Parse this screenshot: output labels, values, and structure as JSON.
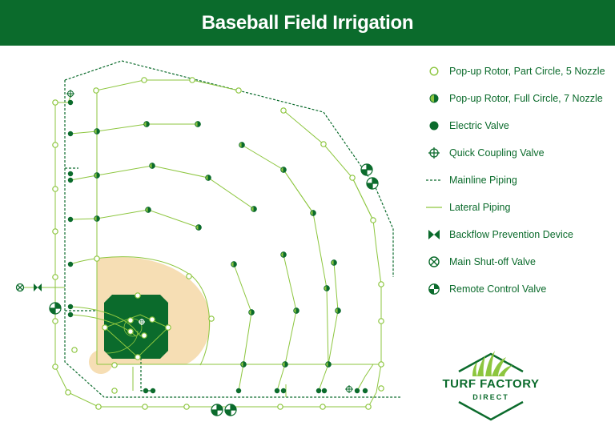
{
  "title": "Baseball Field Irrigation",
  "colors": {
    "brand_green": "#0b6b2c",
    "light_green": "#8dc63f",
    "dirt": "#f6deb4",
    "white": "#ffffff"
  },
  "legend": [
    {
      "icon": "rotor-part-circle-icon",
      "label": "Pop-up Rotor, Part Circle, 5 Nozzle"
    },
    {
      "icon": "rotor-full-circle-icon",
      "label": "Pop-up Rotor, Full Circle, 7 Nozzle"
    },
    {
      "icon": "electric-valve-icon",
      "label": "Electric Valve"
    },
    {
      "icon": "quick-coupling-valve-icon",
      "label": "Quick Coupling Valve"
    },
    {
      "icon": "mainline-piping-icon",
      "label": "Mainline Piping"
    },
    {
      "icon": "lateral-piping-icon",
      "label": "Lateral Piping"
    },
    {
      "icon": "backflow-prevention-icon",
      "label": "Backflow Prevention Device"
    },
    {
      "icon": "main-shutoff-valve-icon",
      "label": "Main Shut-off Valve"
    },
    {
      "icon": "remote-control-valve-icon",
      "label": "Remote Control Valve"
    }
  ],
  "logo": {
    "name": "TURF FACTORY",
    "subtitle": "DIRECT"
  }
}
